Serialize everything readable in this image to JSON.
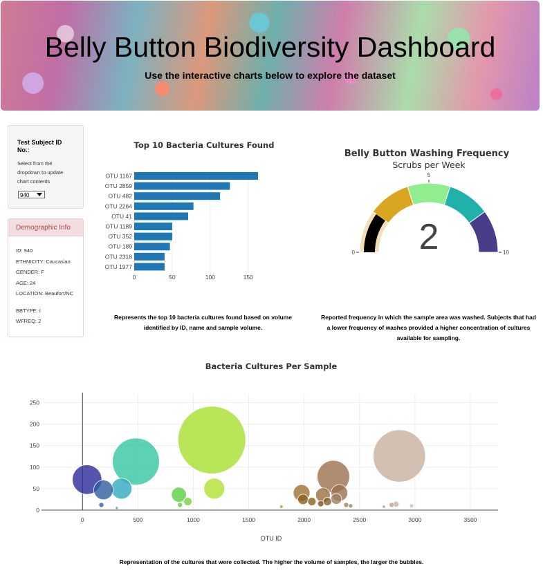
{
  "header": {
    "title": "Belly Button Biodiversity Dashboard",
    "subtitle": "Use the interactive charts below to explore the dataset"
  },
  "selector": {
    "label": "Test Subject ID No.:",
    "hint": "Select from the dropdown to update chart contents",
    "value": "940"
  },
  "demographics": {
    "title": "Demographic Info",
    "rows": [
      "ID: 940",
      "ETHNICITY: Caucasian",
      "GENDER: F",
      "AGE: 24",
      "LOCATION: Beaufort/NC",
      "BBTYPE: I",
      "WFREQ: 2"
    ]
  },
  "captions": {
    "bar": "Represents the top 10 bacteria cultures found based on volume identified by ID, name and sample volume.",
    "gauge": "Reported frequency in which the sample area was washed. Subjects that had a lower frequency of washes provided a higher concentration of cultures available for sampling.",
    "bubble": "Representation of the cultures that were collected. The higher the volume of samples, the larger the bubbles."
  },
  "colors": {
    "bar": "#1f77b4",
    "gauge_needle": "#000000"
  },
  "chart_data": [
    {
      "type": "bar",
      "orientation": "horizontal",
      "title": "Top 10 Bacteria Cultures Found",
      "categories": [
        "OTU 1167",
        "OTU 2859",
        "OTU 482",
        "OTU 2264",
        "OTU 41",
        "OTU 1189",
        "OTU 352",
        "OTU 189",
        "OTU 2318",
        "OTU 1977"
      ],
      "values": [
        163,
        126,
        113,
        78,
        71,
        50,
        50,
        47,
        40,
        40
      ],
      "xlim": [
        0,
        173
      ],
      "xticks": [
        0,
        50,
        100,
        150
      ],
      "grid": true
    },
    {
      "type": "gauge",
      "title": "Belly Button Washing Frequency",
      "subtitle": "Scrubs per Week",
      "value": 2,
      "range": [
        0,
        10
      ],
      "ticks": [
        "0",
        "5",
        "10"
      ],
      "steps": [
        {
          "range": [
            0,
            2
          ],
          "color": "#f5deb3"
        },
        {
          "range": [
            2,
            4
          ],
          "color": "#daa520"
        },
        {
          "range": [
            4,
            6
          ],
          "color": "#90ee90"
        },
        {
          "range": [
            6,
            8
          ],
          "color": "#20b2aa"
        },
        {
          "range": [
            8,
            10
          ],
          "color": "#483d8b"
        }
      ],
      "bar_color": "#000000"
    },
    {
      "type": "scatter",
      "mode": "bubble",
      "title": "Bacteria Cultures Per Sample",
      "xlabel": "OTU ID",
      "ylabel": "",
      "xlim": [
        -370,
        3750
      ],
      "ylim": [
        0,
        270
      ],
      "xticks": [
        0,
        500,
        1000,
        1500,
        2000,
        2500,
        3000,
        3500
      ],
      "yticks": [
        0,
        50,
        100,
        150,
        200,
        250
      ],
      "grid": true,
      "points": [
        {
          "x": 41,
          "y": 71,
          "color": "#2a2a9a"
        },
        {
          "x": 189,
          "y": 47,
          "color": "#2e5fa0"
        },
        {
          "x": 352,
          "y": 50,
          "color": "#30a8c0"
        },
        {
          "x": 482,
          "y": 113,
          "color": "#35c5a0"
        },
        {
          "x": 170,
          "y": 12,
          "color": "#2e5fa0"
        },
        {
          "x": 310,
          "y": 5,
          "color": "#30a8c0"
        },
        {
          "x": 870,
          "y": 36,
          "color": "#5ad040"
        },
        {
          "x": 880,
          "y": 12,
          "color": "#5ad040"
        },
        {
          "x": 950,
          "y": 20,
          "color": "#7ad040"
        },
        {
          "x": 1167,
          "y": 163,
          "color": "#a8e030"
        },
        {
          "x": 1189,
          "y": 50,
          "color": "#b0e030"
        },
        {
          "x": 1795,
          "y": 8,
          "color": "#b09030"
        },
        {
          "x": 1977,
          "y": 40,
          "color": "#a07030"
        },
        {
          "x": 1990,
          "y": 25,
          "color": "#8a6020"
        },
        {
          "x": 2070,
          "y": 20,
          "color": "#8a6020"
        },
        {
          "x": 2150,
          "y": 15,
          "color": "#7a5020"
        },
        {
          "x": 2170,
          "y": 35,
          "color": "#9a7040"
        },
        {
          "x": 2210,
          "y": 20,
          "color": "#8a6030"
        },
        {
          "x": 2264,
          "y": 78,
          "color": "#9a7050"
        },
        {
          "x": 2290,
          "y": 26,
          "color": "#a08060"
        },
        {
          "x": 2318,
          "y": 40,
          "color": "#9a7050"
        },
        {
          "x": 2380,
          "y": 12,
          "color": "#a08060"
        },
        {
          "x": 2420,
          "y": 10,
          "color": "#a08060"
        },
        {
          "x": 2720,
          "y": 8,
          "color": "#c0a090"
        },
        {
          "x": 2790,
          "y": 12,
          "color": "#c0a090"
        },
        {
          "x": 2830,
          "y": 14,
          "color": "#c8b0a0"
        },
        {
          "x": 2859,
          "y": 126,
          "color": "#c8b0a0"
        },
        {
          "x": 2970,
          "y": 10,
          "color": "#d0c0b0"
        }
      ]
    }
  ]
}
